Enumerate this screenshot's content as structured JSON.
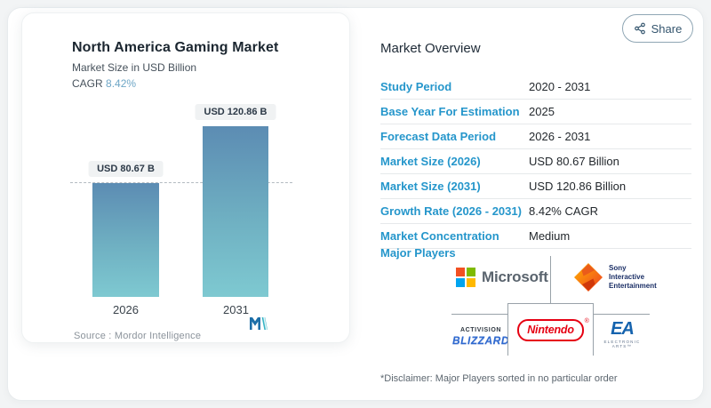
{
  "share": {
    "label": "Share"
  },
  "chart_card": {
    "title": "North America Gaming Market",
    "subtitle": "Market Size in USD Billion",
    "cagr_label": "CAGR",
    "cagr_value": "8.42%",
    "source_label": "Source :",
    "source_value": "Mordor Intelligence"
  },
  "chart_data": {
    "type": "bar",
    "categories": [
      "2026",
      "2031"
    ],
    "values": [
      80.67,
      120.86
    ],
    "bar_labels": [
      "USD 80.67 B",
      "USD 120.86 B"
    ],
    "title": "North America Gaming Market",
    "subtitle": "Market Size in USD Billion",
    "cagr": "8.42%",
    "unit": "USD Billion",
    "ylim": [
      0,
      130
    ],
    "grid": false,
    "reference_line_at": 80.67,
    "bar_gradient": [
      "#5c8cb3",
      "#7ec9d1"
    ]
  },
  "overview": {
    "title": "Market Overview",
    "rows": [
      {
        "label": "Study Period",
        "value": "2020 - 2031"
      },
      {
        "label": "Base Year For Estimation",
        "value": "2025"
      },
      {
        "label": "Forecast Data Period",
        "value": "2026 - 2031"
      },
      {
        "label": "Market Size (2026)",
        "value": "USD 80.67 Billion"
      },
      {
        "label": "Market Size (2031)",
        "value": "USD 120.86 Billion"
      },
      {
        "label": "Growth Rate (2026 - 2031)",
        "value": "8.42% CAGR"
      },
      {
        "label": "Market Concentration",
        "value": "Medium"
      }
    ],
    "major_players_label": "Major Players",
    "major_players": [
      "Microsoft",
      "Sony Interactive Entertainment",
      "Activision Blizzard",
      "Nintendo",
      "Electronic Arts"
    ],
    "disclaimer": "*Disclaimer: Major Players sorted in no particular order"
  },
  "logos": {
    "microsoft_text": "Microsoft",
    "sony_lines": [
      "Sony",
      "Interactive",
      "Entertainment"
    ],
    "activision_line1": "ACTIVISION",
    "activision_line2": "BLIZZARD",
    "nintendo_text": "Nintendo",
    "nintendo_reg": "®",
    "ea_text": "EA",
    "ea_sub": "ELECTRONIC ARTS™"
  },
  "colors": {
    "accent_blue_label": "#2596cb",
    "cagr_value_blue": "#6ea6c6",
    "bar_top": "#5c8cb3",
    "bar_bottom": "#7ec9d1",
    "share_text": "#33546d",
    "nintendo_red": "#e60012",
    "microsoft_squares": [
      "#f25022",
      "#7fba00",
      "#00a4ef",
      "#ffb900"
    ],
    "ea_blue": "#1563ae",
    "connector_gray": "#99a2a9"
  }
}
